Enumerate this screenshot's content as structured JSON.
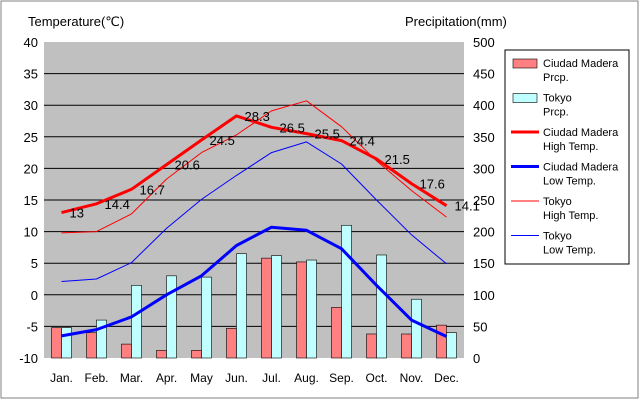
{
  "chart_data": {
    "type": "bar",
    "title": "",
    "y_left_label": "Temperature(℃)",
    "y_right_label": "Precipitation(mm)",
    "xlabel": "",
    "categories": [
      "Jan.",
      "Feb.",
      "Mar.",
      "Apr.",
      "May",
      "Jun.",
      "Jul.",
      "Aug.",
      "Sep.",
      "Oct.",
      "Nov.",
      "Dec."
    ],
    "y_left_lim": [
      -10,
      40
    ],
    "y_left_ticks": [
      -10,
      -5,
      0,
      5,
      10,
      15,
      20,
      25,
      30,
      35,
      40
    ],
    "y_right_lim": [
      0,
      500
    ],
    "y_right_ticks": [
      0,
      50,
      100,
      150,
      200,
      250,
      300,
      350,
      400,
      450,
      500
    ],
    "grid": true,
    "legend_position": "right",
    "plot_background": "#c0c0c0",
    "series": [
      {
        "name": "Ciudad Madera\nPrcp.",
        "kind": "bar",
        "axis": "right",
        "color": "#ff8080",
        "values": [
          48,
          40,
          22,
          12,
          12,
          47,
          158,
          152,
          80,
          38,
          38,
          52
        ]
      },
      {
        "name": "Tokyo\nPrcp.",
        "kind": "bar",
        "axis": "right",
        "color": "#c0ffff",
        "values": [
          48,
          60,
          115,
          130,
          128,
          165,
          162,
          155,
          210,
          163,
          93,
          40
        ]
      },
      {
        "name": "Ciudad Madera\nHigh Temp.",
        "kind": "line",
        "axis": "left",
        "color": "#ff0000",
        "width": 3,
        "values": [
          13,
          14.4,
          16.7,
          20.6,
          24.5,
          28.3,
          26.5,
          25.5,
          24.4,
          21.5,
          17.6,
          14.1
        ],
        "labels": [
          "13",
          "14.4",
          "16.7",
          "20.6",
          "24.5",
          "28.3",
          "26.5",
          "25.5",
          "24.4",
          "21.5",
          "17.6",
          "14.1"
        ]
      },
      {
        "name": "Ciudad Madera\nLow Temp.",
        "kind": "line",
        "axis": "left",
        "color": "#0000ff",
        "width": 3,
        "values": [
          -6.5,
          -5.5,
          -3.5,
          0,
          3,
          7.8,
          10.7,
          10.2,
          7.3,
          1.5,
          -4,
          -6.6
        ]
      },
      {
        "name": "Tokyo\nHigh Temp.",
        "kind": "line",
        "axis": "left",
        "color": "#ff0000",
        "width": 1,
        "values": [
          9.8,
          10,
          12.8,
          18.3,
          22.5,
          25.3,
          29.1,
          30.7,
          26.6,
          21.2,
          16.5,
          12.3
        ]
      },
      {
        "name": "Tokyo\nLow Temp.",
        "kind": "line",
        "axis": "left",
        "color": "#0000ff",
        "width": 1,
        "values": [
          2.1,
          2.5,
          5.1,
          10.5,
          15.1,
          18.9,
          22.5,
          24.2,
          20.7,
          15,
          9.5,
          4.9
        ]
      }
    ]
  }
}
